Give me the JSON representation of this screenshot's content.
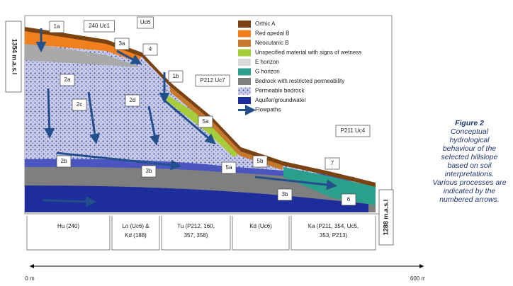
{
  "elevation": {
    "top": "1354 m.a.s.l",
    "bottom": "1288 m.a.s.l"
  },
  "labels": [
    "1a",
    "240 Uc1",
    "Uc6",
    "3a",
    "4",
    "1b",
    "P212 Uc7",
    "2a",
    "2c",
    "2d",
    "5a",
    "5a",
    "5b",
    "7",
    "P211 Uc4",
    "2b",
    "3b",
    "3b",
    "6"
  ],
  "legend": [
    {
      "label": "Orthic A",
      "color": "#7b4312"
    },
    {
      "label": "Red apedal B",
      "color": "#f07f1e"
    },
    {
      "label": "Neocutanic B",
      "color": "#c6782c"
    },
    {
      "label": "Unspecified material with signs of wetness",
      "color": "#a6cc3c"
    },
    {
      "label": "E horizon",
      "color": "#d9d9d9"
    },
    {
      "label": "G horizon",
      "color": "#2a9f8c"
    },
    {
      "label": "Bedrock with restricted permeability",
      "color": "#7f7f7f"
    },
    {
      "label": "Permeable bedrock",
      "color": "#b9bfe0"
    },
    {
      "label": "Aquifer/groundwater",
      "color": "#1d2d9c"
    },
    {
      "label": "Flowpaths",
      "color": "#234f8c"
    }
  ],
  "units": [
    [
      "Hu (240)"
    ],
    [
      "Lo (Uc6) &",
      "Kd (188)"
    ],
    [
      "Tu (P212, 160,",
      "357, 358)"
    ],
    [
      "Kd (Uc6)"
    ],
    [
      "Ka (P211, 354, Uc5,",
      "353, P213)"
    ]
  ],
  "distance": {
    "start": "0 m",
    "end": "600 m"
  },
  "caption": {
    "title": "Figure 2",
    "text": "Conceptual hydrological behaviour of the selected hillslope based on soil interpretations. Various processes are indicated by the numbered arrows."
  }
}
